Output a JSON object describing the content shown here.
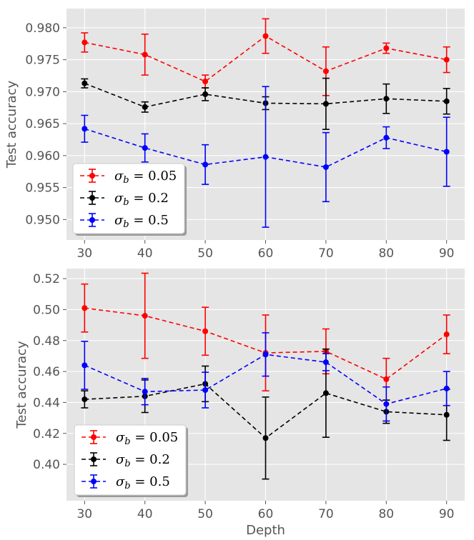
{
  "chart_data": [
    {
      "type": "line",
      "title": "",
      "xlabel": "",
      "ylabel": "Test accuracy",
      "x": [
        30,
        40,
        50,
        60,
        70,
        80,
        90
      ],
      "xticks": [
        "30",
        "40",
        "50",
        "60",
        "70",
        "80",
        "90"
      ],
      "xlim": [
        27,
        93
      ],
      "ylim": [
        0.9468,
        0.983
      ],
      "yticks": [
        "0.950",
        "0.955",
        "0.960",
        "0.965",
        "0.970",
        "0.975",
        "0.980"
      ],
      "ytick_values": [
        0.95,
        0.955,
        0.96,
        0.965,
        0.97,
        0.975,
        0.98
      ],
      "grid": true,
      "legend_position": "bottom-left",
      "series": [
        {
          "name": "σ_b = 0.05",
          "label_sym": "σ",
          "label_sub": "b",
          "label_val": " = 0.05",
          "color": "#ff0000",
          "values": [
            0.9777,
            0.9758,
            0.9716,
            0.9787,
            0.9732,
            0.9768,
            0.975
          ],
          "errors": [
            0.0015,
            0.0032,
            0.001,
            0.0027,
            0.0038,
            0.0008,
            0.002
          ]
        },
        {
          "name": "σ_b = 0.2",
          "label_sym": "σ",
          "label_sub": "b",
          "label_val": " = 0.2",
          "color": "#000000",
          "values": [
            0.9713,
            0.9676,
            0.9696,
            0.9682,
            0.9681,
            0.9689,
            0.9685
          ],
          "errors": [
            0.0007,
            0.0008,
            0.001,
            0.001,
            0.004,
            0.0023,
            0.002
          ]
        },
        {
          "name": "σ_b = 0.5",
          "label_sym": "σ",
          "label_sub": "b",
          "label_val": " = 0.5",
          "color": "#0000ff",
          "values": [
            0.9642,
            0.9612,
            0.9586,
            0.9598,
            0.9582,
            0.9628,
            0.9606
          ],
          "errors": [
            0.0021,
            0.0022,
            0.0031,
            0.011,
            0.0054,
            0.0017,
            0.0054
          ]
        }
      ]
    },
    {
      "type": "line",
      "title": "",
      "xlabel": "Depth",
      "ylabel": "Test accuracy",
      "x": [
        30,
        40,
        50,
        60,
        70,
        80,
        90
      ],
      "xticks": [
        "30",
        "40",
        "50",
        "60",
        "70",
        "80",
        "90"
      ],
      "xlim": [
        27,
        93
      ],
      "ylim": [
        0.3765,
        0.5265
      ],
      "yticks": [
        "0.40",
        "0.42",
        "0.44",
        "0.46",
        "0.48",
        "0.50",
        "0.52"
      ],
      "ytick_values": [
        0.4,
        0.42,
        0.44,
        0.46,
        0.48,
        0.5,
        0.52
      ],
      "grid": true,
      "legend_position": "bottom-left",
      "series": [
        {
          "name": "σ_b = 0.05",
          "label_sym": "σ",
          "label_sub": "b",
          "label_val": " = 0.05",
          "color": "#ff0000",
          "values": [
            0.501,
            0.496,
            0.486,
            0.472,
            0.473,
            0.455,
            0.484
          ],
          "errors": [
            0.0155,
            0.0275,
            0.0155,
            0.0245,
            0.0145,
            0.0135,
            0.0125
          ]
        },
        {
          "name": "σ_b = 0.2",
          "label_sym": "σ",
          "label_sub": "b",
          "label_val": " = 0.2",
          "color": "#000000",
          "values": [
            0.442,
            0.444,
            0.452,
            0.417,
            0.446,
            0.434,
            0.432
          ],
          "errors": [
            0.0055,
            0.0105,
            0.0115,
            0.0265,
            0.0285,
            0.0075,
            0.0165
          ]
        },
        {
          "name": "σ_b = 0.5",
          "label_sym": "σ",
          "label_sub": "b",
          "label_val": " = 0.5",
          "color": "#0000ff",
          "values": [
            0.464,
            0.447,
            0.448,
            0.471,
            0.466,
            0.439,
            0.449
          ],
          "errors": [
            0.0155,
            0.0085,
            0.0115,
            0.014,
            0.0055,
            0.011,
            0.011
          ]
        }
      ]
    }
  ]
}
